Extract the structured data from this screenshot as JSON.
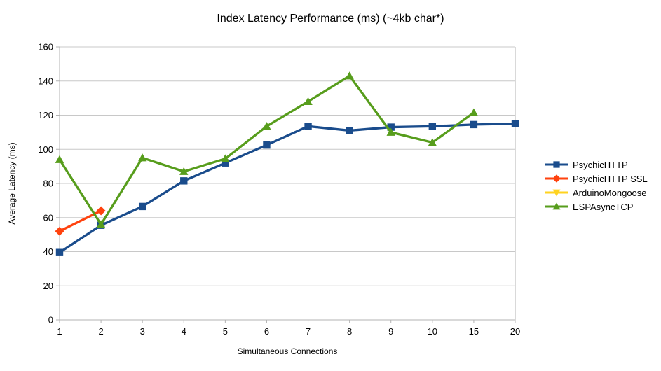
{
  "colors": {
    "background": "#ffffff",
    "grid": "#c8c8c8",
    "axis": "#b3b3b3",
    "text": "#000000"
  },
  "chart_data": {
    "type": "line",
    "title": "Index Latency Performance (ms) (~4kb char*)",
    "xlabel": "Simultaneous Connections",
    "ylabel": "Average Latency (ms)",
    "categories": [
      "1",
      "2",
      "3",
      "4",
      "5",
      "6",
      "7",
      "8",
      "9",
      "10",
      "15",
      "20"
    ],
    "ylim": [
      0,
      160
    ],
    "ytick_step": 20,
    "grid": "horizontal",
    "legend_position": "right",
    "series": [
      {
        "name": "PsychicHTTP",
        "color": "#1a4c8c",
        "marker": "square",
        "values": [
          39.5,
          55.5,
          66.5,
          81.5,
          92,
          102.5,
          113.5,
          111,
          113,
          113.5,
          114.5,
          115
        ]
      },
      {
        "name": "PsychicHTTP SSL",
        "color": "#ff420e",
        "marker": "diamond",
        "values": [
          52,
          64,
          null,
          null,
          null,
          null,
          null,
          null,
          null,
          null,
          null,
          null
        ]
      },
      {
        "name": "ArduinoMongoose",
        "color": "#ffd320",
        "marker": "triangle-down",
        "values": [
          null,
          null,
          null,
          null,
          null,
          null,
          null,
          null,
          null,
          null,
          null,
          null
        ]
      },
      {
        "name": "ESPAsyncTCP",
        "color": "#579d1c",
        "marker": "triangle-up",
        "values": [
          94,
          56,
          95,
          87,
          94.5,
          113.5,
          128,
          143,
          110,
          104,
          121.5,
          null
        ]
      }
    ]
  }
}
